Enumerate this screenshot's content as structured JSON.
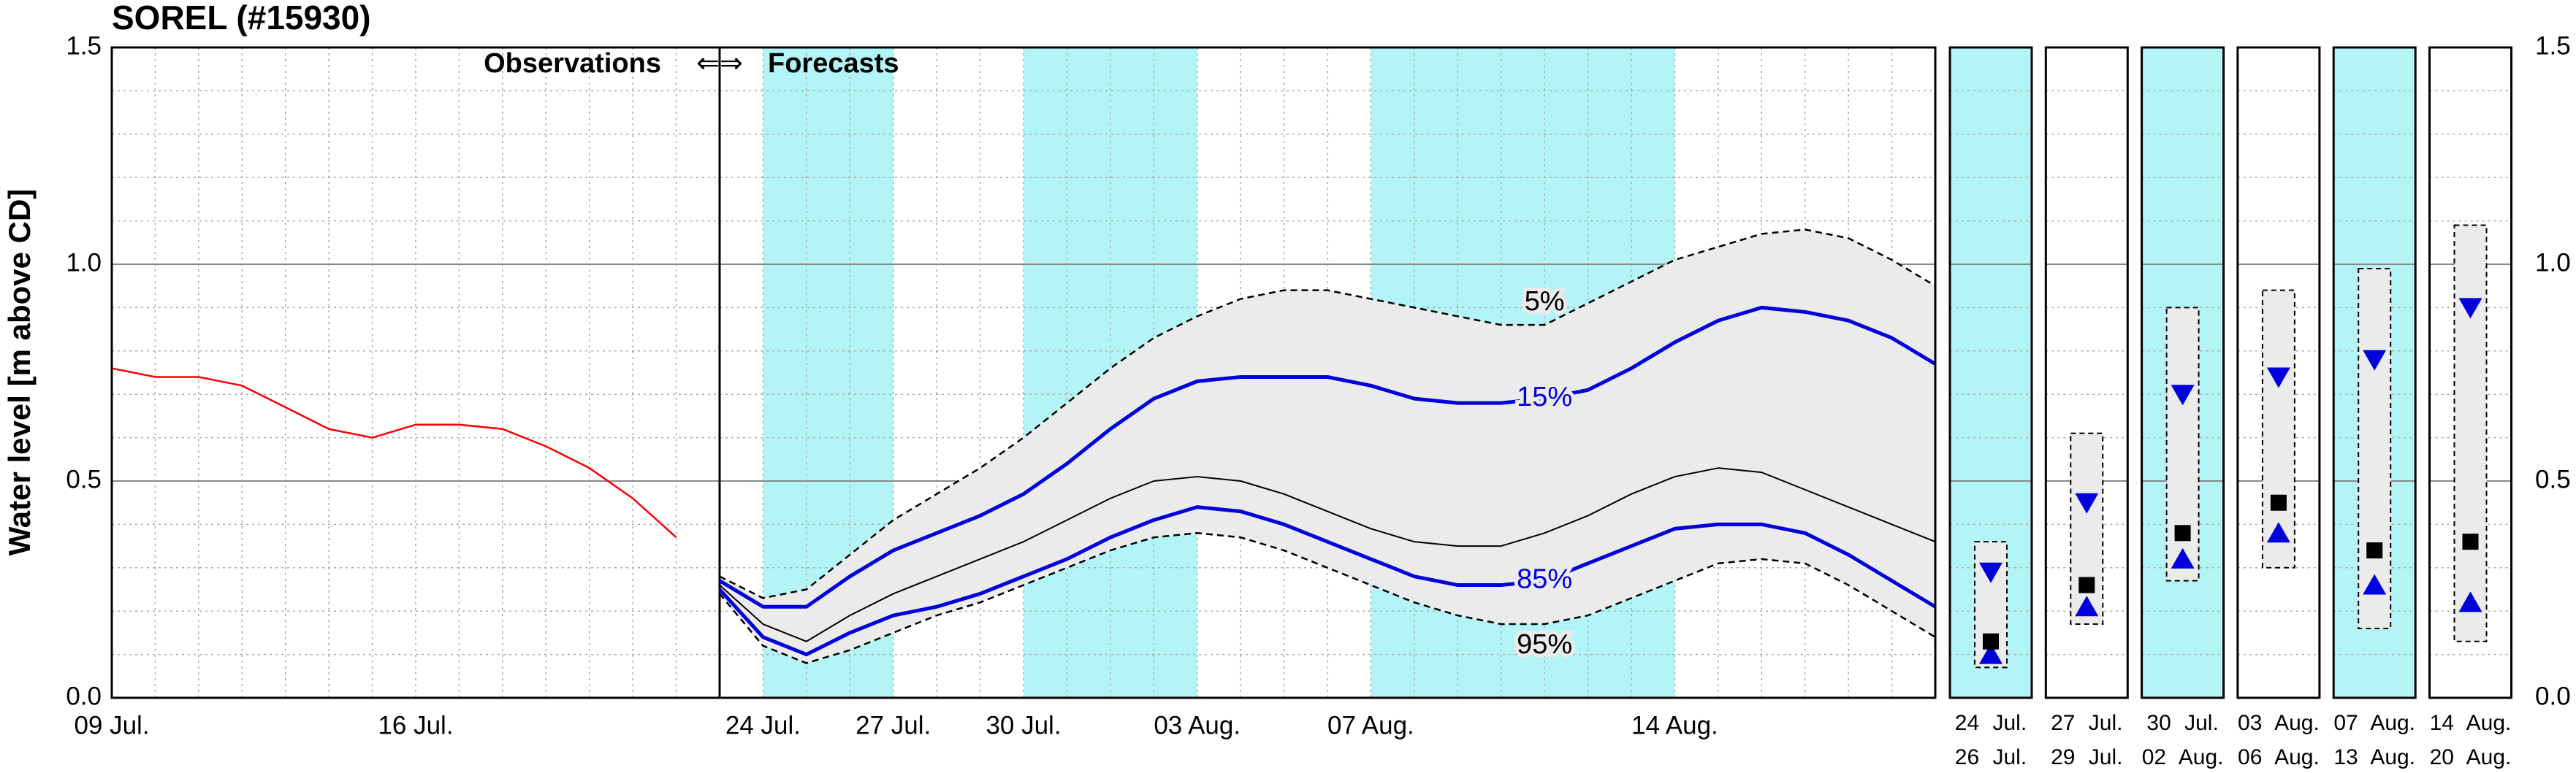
{
  "chart_data": [
    {
      "type": "line",
      "title": "SOREL (#15930)",
      "ylabel": "Water level [m above CD]",
      "annotations": [
        "Observations",
        "⇐⇒",
        "Forecasts"
      ],
      "categories": [
        "09 Jul.",
        null,
        null,
        null,
        null,
        null,
        null,
        "16 Jul.",
        null,
        null,
        null,
        null,
        null,
        null,
        null,
        "24 Jul.",
        null,
        null,
        "27 Jul.",
        null,
        null,
        "30 Jul.",
        null,
        null,
        null,
        "03 Aug.",
        null,
        null,
        null,
        "07 Aug.",
        null,
        null,
        null,
        null,
        null,
        null,
        "14 Aug.",
        null,
        null,
        null,
        null,
        null,
        null
      ],
      "ylim": [
        0,
        1.5
      ],
      "yticks": [
        {
          "value": 0,
          "label": "0.0"
        },
        0.5,
        {
          "value": 1,
          "label": "1.0"
        },
        1.5
      ],
      "minor_yticks": [
        0.1,
        0.2,
        0.3,
        0.4,
        0.6,
        0.7,
        0.8,
        0.9,
        1.1,
        1.2,
        1.3,
        1.4
      ],
      "grid": true,
      "spans": [
        {
          "start": "24 Jul.",
          "end": "27 Jul."
        },
        {
          "start": "30 Jul.",
          "end": "03 Aug."
        },
        {
          "start": "07 Aug.",
          "end": "14 Aug."
        }
      ],
      "span_color": "#b3f5f7",
      "band_color": "#ebebeb",
      "series": [
        {
          "color": "#ff0000",
          "values": [
            0.76,
            0.74,
            0.74,
            0.72,
            0.67,
            0.62,
            0.6,
            0.63,
            0.63,
            0.62,
            0.58,
            0.53,
            0.46,
            0.37,
            null,
            null,
            null,
            null,
            null,
            null,
            null,
            null,
            null,
            null,
            null,
            null,
            null,
            null,
            null,
            null,
            null,
            null,
            null,
            null,
            null,
            null,
            null,
            null,
            null,
            null,
            null,
            null,
            null
          ]
        },
        {
          "name": "5%",
          "color": "#000000",
          "dashed": true,
          "values": [
            null,
            null,
            null,
            null,
            null,
            null,
            null,
            null,
            null,
            null,
            null,
            null,
            null,
            null,
            0.28,
            0.23,
            0.25,
            0.33,
            0.41,
            0.47,
            0.53,
            0.6,
            0.68,
            0.76,
            0.83,
            0.88,
            0.92,
            0.94,
            0.94,
            0.92,
            0.9,
            0.88,
            0.86,
            0.86,
            0.91,
            0.96,
            1.01,
            1.04,
            1.07,
            1.08,
            1.06,
            1.01,
            0.95
          ]
        },
        {
          "name": "15%",
          "color": "#0000dd",
          "values": [
            null,
            null,
            null,
            null,
            null,
            null,
            null,
            null,
            null,
            null,
            null,
            null,
            null,
            null,
            0.27,
            0.21,
            0.21,
            0.28,
            0.34,
            0.38,
            0.42,
            0.47,
            0.54,
            0.62,
            0.69,
            0.73,
            0.74,
            0.74,
            0.74,
            0.72,
            0.69,
            0.68,
            0.68,
            0.69,
            0.71,
            0.76,
            0.82,
            0.87,
            0.9,
            0.89,
            0.87,
            0.83,
            0.77
          ]
        },
        {
          "color": "#000000",
          "values": [
            null,
            null,
            null,
            null,
            null,
            null,
            null,
            null,
            null,
            null,
            null,
            null,
            null,
            null,
            0.26,
            0.17,
            0.13,
            0.19,
            0.24,
            0.28,
            0.32,
            0.36,
            0.41,
            0.46,
            0.5,
            0.51,
            0.5,
            0.47,
            0.43,
            0.39,
            0.36,
            0.35,
            0.35,
            0.38,
            0.42,
            0.47,
            0.51,
            0.53,
            0.52,
            0.48,
            0.44,
            0.4,
            0.36
          ]
        },
        {
          "name": "85%",
          "color": "#0000dd",
          "values": [
            null,
            null,
            null,
            null,
            null,
            null,
            null,
            null,
            null,
            null,
            null,
            null,
            null,
            null,
            0.25,
            0.14,
            0.1,
            0.15,
            0.19,
            0.21,
            0.24,
            0.28,
            0.32,
            0.37,
            0.41,
            0.44,
            0.43,
            0.4,
            0.36,
            0.32,
            0.28,
            0.26,
            0.26,
            0.27,
            0.31,
            0.35,
            0.39,
            0.4,
            0.4,
            0.38,
            0.33,
            0.27,
            0.21
          ]
        },
        {
          "name": "95%",
          "color": "#000000",
          "dashed": true,
          "values": [
            null,
            null,
            null,
            null,
            null,
            null,
            null,
            null,
            null,
            null,
            null,
            null,
            null,
            null,
            0.24,
            0.12,
            0.08,
            0.11,
            0.15,
            0.19,
            0.22,
            0.26,
            0.3,
            0.34,
            0.37,
            0.38,
            0.37,
            0.34,
            0.3,
            0.26,
            0.22,
            0.19,
            0.17,
            0.17,
            0.19,
            0.23,
            0.27,
            0.31,
            0.32,
            0.31,
            0.26,
            0.2,
            0.14
          ]
        }
      ]
    },
    {
      "type": "range",
      "ylim": [
        0,
        1.5
      ],
      "box_color": "#ebebeb",
      "marker_color": "#0000dd",
      "shade_color": "#b3f5f7",
      "periods": [
        {
          "start": "24 Jul.",
          "end": "26 Jul.",
          "shaded": true,
          "low": 0.07,
          "high": 0.36,
          "upper": 0.29,
          "median": 0.13,
          "lower": 0.1
        },
        {
          "start": "27 Jul.",
          "end": "29 Jul.",
          "shaded": false,
          "low": 0.17,
          "high": 0.61,
          "upper": 0.45,
          "median": 0.26,
          "lower": 0.21
        },
        {
          "start": "30 Jul.",
          "end": "02 Aug.",
          "shaded": true,
          "low": 0.27,
          "high": 0.9,
          "upper": 0.7,
          "median": 0.38,
          "lower": 0.32
        },
        {
          "start": "03 Aug.",
          "end": "06 Aug.",
          "shaded": false,
          "low": 0.3,
          "high": 0.94,
          "upper": 0.74,
          "median": 0.45,
          "lower": 0.38
        },
        {
          "start": "07 Aug.",
          "end": "13 Aug.",
          "shaded": true,
          "low": 0.16,
          "high": 0.99,
          "upper": 0.78,
          "median": 0.34,
          "lower": 0.26
        },
        {
          "start": "14 Aug.",
          "end": "20 Aug.",
          "shaded": false,
          "low": 0.13,
          "high": 1.09,
          "upper": 0.9,
          "median": 0.36,
          "lower": 0.22
        }
      ]
    }
  ]
}
